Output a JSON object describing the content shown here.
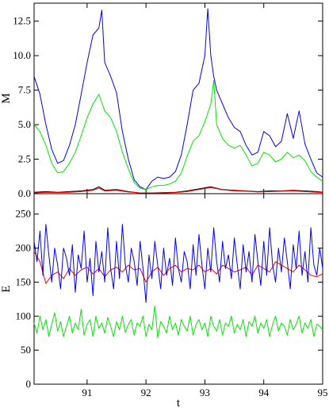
{
  "colors": {
    "blue": "#0000ff",
    "green": "#00e600",
    "red": "#ff0000",
    "black": "#000000",
    "background": "#ffffff"
  },
  "chart_data": [
    {
      "type": "line",
      "ylabel": "M",
      "xlabel": "",
      "xlim": [
        90.1,
        95.0
      ],
      "ylim": [
        0,
        13.8
      ],
      "yticks": [
        "0.0",
        "2.5",
        "5.0",
        "7.5",
        "10.0",
        "12.5"
      ],
      "yticks_values": [
        0,
        2.5,
        5,
        7.5,
        10,
        12.5
      ],
      "xtick_labels_shown": false,
      "grid": false,
      "legend": "none",
      "series": [
        {
          "color": "blue",
          "x": [
            90.1,
            90.2,
            90.3,
            90.4,
            90.5,
            90.6,
            90.7,
            90.8,
            90.9,
            91.0,
            91.1,
            91.2,
            91.25,
            91.3,
            91.4,
            91.5,
            91.6,
            91.7,
            91.8,
            91.9,
            92.0,
            92.1,
            92.2,
            92.3,
            92.4,
            92.5,
            92.6,
            92.7,
            92.8,
            92.9,
            93.0,
            93.05,
            93.1,
            93.15,
            93.2,
            93.3,
            93.4,
            93.5,
            93.6,
            93.7,
            93.8,
            93.9,
            94.0,
            94.1,
            94.2,
            94.3,
            94.4,
            94.5,
            94.6,
            94.7,
            94.8,
            94.9,
            95.0
          ],
          "values": [
            8.5,
            7.2,
            5.0,
            3.2,
            2.2,
            2.4,
            3.5,
            5.0,
            7.2,
            9.5,
            11.5,
            12.0,
            13.3,
            9.5,
            8.5,
            7.3,
            4.5,
            2.5,
            1.0,
            0.5,
            0.3,
            0.9,
            1.2,
            1.1,
            1.2,
            1.6,
            2.8,
            5.0,
            7.5,
            8.0,
            10.0,
            13.4,
            10.0,
            8.5,
            7.5,
            6.5,
            5.5,
            4.8,
            4.5,
            3.5,
            2.8,
            3.0,
            4.5,
            4.2,
            3.4,
            3.8,
            5.8,
            4.0,
            6.0,
            3.6,
            2.5,
            1.5,
            1.2
          ]
        },
        {
          "color": "green",
          "x": [
            90.1,
            90.2,
            90.3,
            90.4,
            90.5,
            90.6,
            90.7,
            90.8,
            90.9,
            91.0,
            91.1,
            91.2,
            91.3,
            91.4,
            91.5,
            91.6,
            91.7,
            91.8,
            91.9,
            92.0,
            92.1,
            92.2,
            92.3,
            92.4,
            92.5,
            92.6,
            92.7,
            92.8,
            92.9,
            93.0,
            93.1,
            93.15,
            93.2,
            93.3,
            93.4,
            93.5,
            93.6,
            93.7,
            93.8,
            93.9,
            94.0,
            94.1,
            94.2,
            94.3,
            94.4,
            94.5,
            94.6,
            94.7,
            94.8,
            94.9,
            95.0
          ],
          "values": [
            5.0,
            4.5,
            3.5,
            2.2,
            1.5,
            1.6,
            2.2,
            3.0,
            4.2,
            5.5,
            6.5,
            7.2,
            6.0,
            5.5,
            4.5,
            3.0,
            1.8,
            0.8,
            0.4,
            0.3,
            0.5,
            0.6,
            0.6,
            0.7,
            0.9,
            1.5,
            2.7,
            3.8,
            4.2,
            5.2,
            6.5,
            8.2,
            5.0,
            4.0,
            3.5,
            3.3,
            3.5,
            2.8,
            2.0,
            2.2,
            3.0,
            2.8,
            2.3,
            2.5,
            3.0,
            2.6,
            2.8,
            2.4,
            1.6,
            1.2,
            0.9
          ]
        },
        {
          "color": "black",
          "x": [
            90.1,
            90.3,
            90.5,
            90.7,
            90.9,
            91.1,
            91.2,
            91.3,
            91.5,
            91.7,
            91.9,
            92.1,
            92.3,
            92.5,
            92.7,
            92.9,
            93.1,
            93.3,
            93.5,
            93.7,
            93.9,
            94.1,
            94.3,
            94.5,
            94.7,
            94.9,
            95.0
          ],
          "values": [
            0.1,
            0.15,
            0.1,
            0.15,
            0.2,
            0.3,
            0.5,
            0.25,
            0.3,
            0.15,
            0.05,
            0.05,
            0.08,
            0.1,
            0.2,
            0.35,
            0.5,
            0.3,
            0.25,
            0.2,
            0.15,
            0.2,
            0.2,
            0.25,
            0.2,
            0.15,
            0.1
          ]
        },
        {
          "color": "red",
          "x": [
            90.1,
            90.3,
            90.5,
            90.7,
            90.9,
            91.1,
            91.2,
            91.3,
            91.5,
            91.7,
            91.9,
            92.1,
            92.3,
            92.5,
            92.7,
            92.9,
            93.1,
            93.3,
            93.5,
            93.7,
            93.9,
            94.1,
            94.3,
            94.5,
            94.7,
            94.9,
            95.0
          ],
          "values": [
            0.05,
            0.1,
            0.08,
            0.1,
            0.15,
            0.25,
            0.4,
            0.2,
            0.25,
            0.12,
            0.05,
            0.04,
            0.06,
            0.08,
            0.15,
            0.3,
            0.45,
            0.28,
            0.2,
            0.18,
            0.12,
            0.15,
            0.18,
            0.2,
            0.15,
            0.1,
            0.08
          ]
        }
      ]
    },
    {
      "type": "line",
      "ylabel": "E",
      "xlabel": "t",
      "xlim": [
        90.1,
        95.0
      ],
      "ylim": [
        0,
        280
      ],
      "yticks": [
        "0",
        "50",
        "100",
        "150",
        "200",
        "250"
      ],
      "yticks_values": [
        0,
        50,
        100,
        150,
        200,
        250
      ],
      "xticks": [
        "91",
        "92",
        "93",
        "94",
        "95"
      ],
      "xticks_values": [
        91,
        92,
        93,
        94,
        95
      ],
      "grid": false,
      "legend": "none",
      "series": [
        {
          "color": "red",
          "x": [
            90.1,
            90.2,
            90.3,
            90.4,
            90.5,
            90.6,
            90.7,
            90.8,
            90.9,
            91.0,
            91.1,
            91.2,
            91.3,
            91.4,
            91.5,
            91.6,
            91.7,
            91.8,
            91.9,
            92.0,
            92.1,
            92.2,
            92.3,
            92.4,
            92.5,
            92.6,
            92.7,
            92.8,
            92.9,
            93.0,
            93.1,
            93.2,
            93.3,
            93.4,
            93.5,
            93.6,
            93.7,
            93.8,
            93.9,
            94.0,
            94.1,
            94.2,
            94.3,
            94.4,
            94.5,
            94.6,
            94.7,
            94.8,
            94.9,
            95.0
          ],
          "values": [
            195,
            180,
            148,
            160,
            165,
            155,
            170,
            160,
            168,
            172,
            162,
            170,
            158,
            168,
            172,
            165,
            175,
            168,
            170,
            150,
            165,
            172,
            160,
            170,
            175,
            165,
            170,
            168,
            175,
            165,
            170,
            162,
            175,
            170,
            165,
            168,
            172,
            160,
            175,
            170,
            165,
            180,
            175,
            170,
            165,
            175,
            168,
            160,
            158,
            162
          ]
        },
        {
          "color": "blue",
          "x": [
            90.1,
            90.15,
            90.2,
            90.25,
            90.3,
            90.35,
            90.4,
            90.45,
            90.5,
            90.55,
            90.6,
            90.65,
            90.7,
            90.75,
            90.8,
            90.85,
            90.9,
            90.95,
            91.0,
            91.05,
            91.1,
            91.15,
            91.2,
            91.25,
            91.3,
            91.35,
            91.4,
            91.45,
            91.5,
            91.55,
            91.6,
            91.65,
            91.7,
            91.75,
            91.8,
            91.85,
            91.9,
            91.95,
            92.0,
            92.05,
            92.1,
            92.15,
            92.2,
            92.25,
            92.3,
            92.35,
            92.4,
            92.45,
            92.5,
            92.55,
            92.6,
            92.65,
            92.7,
            92.75,
            92.8,
            92.85,
            92.9,
            92.95,
            93.0,
            93.05,
            93.1,
            93.15,
            93.2,
            93.25,
            93.3,
            93.35,
            93.4,
            93.45,
            93.5,
            93.55,
            93.6,
            93.65,
            93.7,
            93.75,
            93.8,
            93.85,
            93.9,
            93.95,
            94.0,
            94.05,
            94.1,
            94.15,
            94.2,
            94.25,
            94.3,
            94.35,
            94.4,
            94.45,
            94.5,
            94.55,
            94.6,
            94.65,
            94.7,
            94.75,
            94.8,
            94.85,
            94.9,
            94.95,
            95.0
          ],
          "values": [
            210,
            180,
            225,
            160,
            235,
            190,
            150,
            200,
            175,
            140,
            200,
            185,
            160,
            205,
            135,
            190,
            170,
            225,
            150,
            185,
            130,
            210,
            165,
            195,
            150,
            230,
            170,
            140,
            210,
            155,
            235,
            175,
            150,
            200,
            180,
            145,
            210,
            170,
            120,
            190,
            155,
            210,
            175,
            140,
            200,
            160,
            185,
            145,
            215,
            170,
            150,
            195,
            180,
            140,
            205,
            160,
            220,
            175,
            140,
            200,
            165,
            230,
            180,
            150,
            210,
            170,
            190,
            155,
            215,
            175,
            140,
            205,
            165,
            195,
            150,
            220,
            180,
            145,
            210,
            160,
            230,
            175,
            150,
            200,
            165,
            215,
            180,
            140,
            205,
            170,
            225,
            160,
            195,
            150,
            230,
            175,
            160,
            200,
            170
          ]
        },
        {
          "color": "green",
          "x": [
            90.1,
            90.15,
            90.2,
            90.25,
            90.3,
            90.35,
            90.4,
            90.45,
            90.5,
            90.55,
            90.6,
            90.65,
            90.7,
            90.75,
            90.8,
            90.85,
            90.9,
            90.95,
            91.0,
            91.05,
            91.1,
            91.15,
            91.2,
            91.25,
            91.3,
            91.35,
            91.4,
            91.45,
            91.5,
            91.55,
            91.6,
            91.65,
            91.7,
            91.75,
            91.8,
            91.85,
            91.9,
            91.95,
            92.0,
            92.05,
            92.1,
            92.15,
            92.2,
            92.25,
            92.3,
            92.35,
            92.4,
            92.45,
            92.5,
            92.55,
            92.6,
            92.65,
            92.7,
            92.75,
            92.8,
            92.85,
            92.9,
            92.95,
            93.0,
            93.05,
            93.1,
            93.15,
            93.2,
            93.25,
            93.3,
            93.35,
            93.4,
            93.45,
            93.5,
            93.55,
            93.6,
            93.65,
            93.7,
            93.75,
            93.8,
            93.85,
            93.9,
            93.95,
            94.0,
            94.05,
            94.1,
            94.15,
            94.2,
            94.25,
            94.3,
            94.35,
            94.4,
            94.45,
            94.5,
            94.55,
            94.6,
            94.65,
            94.7,
            94.75,
            94.8,
            94.85,
            94.9,
            94.95,
            95.0
          ],
          "values": [
            90,
            75,
            100,
            80,
            95,
            70,
            88,
            105,
            78,
            92,
            70,
            85,
            100,
            75,
            90,
            80,
            110,
            72,
            88,
            95,
            70,
            100,
            82,
            90,
            75,
            98,
            85,
            70,
            92,
            80,
            100,
            76,
            88,
            95,
            72,
            90,
            85,
            100,
            70,
            88,
            80,
            115,
            68,
            92,
            85,
            75,
            100,
            80,
            90,
            72,
            95,
            85,
            78,
            100,
            72,
            88,
            95,
            80,
            90,
            70,
            100,
            85,
            78,
            95,
            72,
            90,
            85,
            100,
            75,
            88,
            80,
            95,
            70,
            92,
            85,
            100,
            75,
            90,
            82,
            95,
            70,
            88,
            100,
            78,
            90,
            85,
            72,
            95,
            80,
            88,
            100,
            75,
            90,
            82,
            95,
            70,
            88,
            85,
            80
          ]
        }
      ]
    }
  ]
}
